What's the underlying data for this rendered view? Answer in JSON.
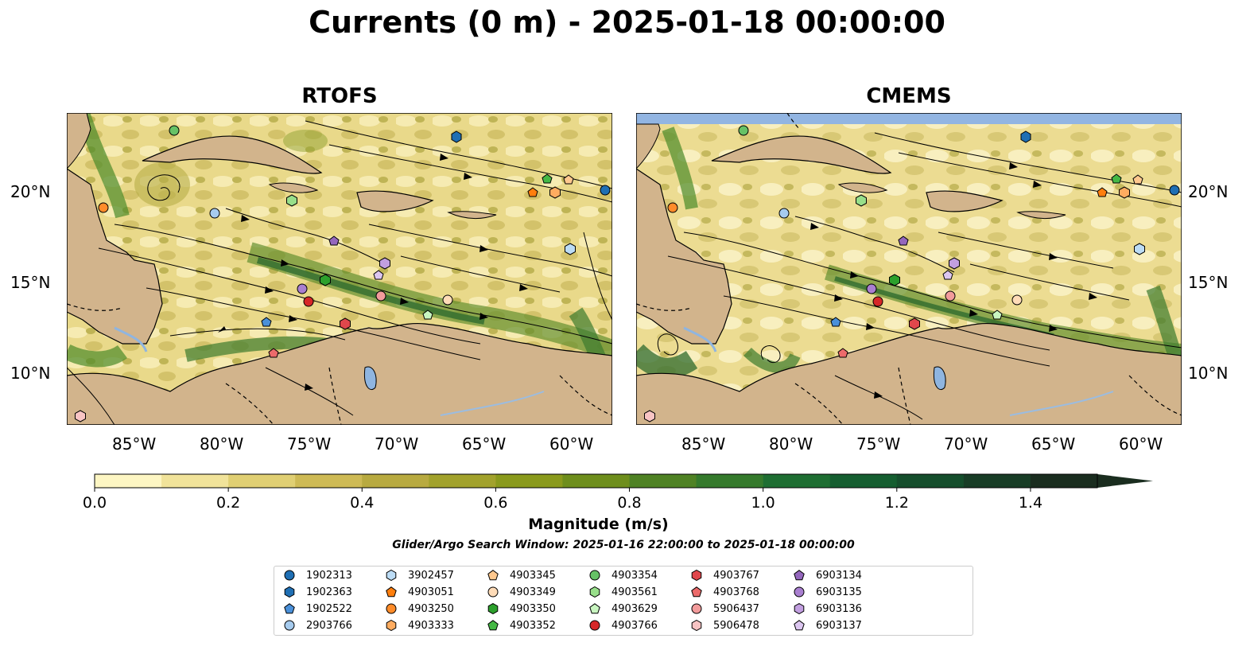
{
  "title": "Currents (0 m) - 2025-01-18 00:00:00",
  "panels": [
    {
      "title": "RTOFS"
    },
    {
      "title": "CMEMS"
    }
  ],
  "axes": {
    "lon_ticks": [
      "85°W",
      "80°W",
      "75°W",
      "70°W",
      "65°W",
      "60°W"
    ],
    "lat_ticks": [
      "20°N",
      "15°N",
      "10°N"
    ]
  },
  "colorbar": {
    "label": "Magnitude (m/s)",
    "ticks": [
      "0.0",
      "0.2",
      "0.4",
      "0.6",
      "0.8",
      "1.0",
      "1.2",
      "1.4"
    ],
    "colors": [
      "#fdf6c3",
      "#f1e39a",
      "#e0cf73",
      "#ceba55",
      "#b8aa40",
      "#a2a22c",
      "#8a9a1c",
      "#6e8e1c",
      "#4f8224",
      "#357a2c",
      "#1e6e32",
      "#155e30",
      "#154e2c",
      "#183d26",
      "#1a2d1f"
    ]
  },
  "search_window": "Glider/Argo Search Window: 2025-01-16 22:00:00 to 2025-01-18 00:00:00",
  "legend": [
    {
      "id": "1902313",
      "color": "#1f6fb4",
      "marker": "circle"
    },
    {
      "id": "1902363",
      "color": "#1f6fb4",
      "marker": "hexagon"
    },
    {
      "id": "1902522",
      "color": "#4a90d9",
      "marker": "pentagon"
    },
    {
      "id": "2903766",
      "color": "#a6cbee",
      "marker": "circle"
    },
    {
      "id": "3902457",
      "color": "#bcdcf5",
      "marker": "hexagon"
    },
    {
      "id": "4903051",
      "color": "#ff7f0e",
      "marker": "pentagon"
    },
    {
      "id": "4903250",
      "color": "#ff8c2a",
      "marker": "circle"
    },
    {
      "id": "4903333",
      "color": "#ffac60",
      "marker": "hexagon"
    },
    {
      "id": "4903345",
      "color": "#ffc88e",
      "marker": "pentagon"
    },
    {
      "id": "4903349",
      "color": "#ffdcb8",
      "marker": "circle"
    },
    {
      "id": "4903350",
      "color": "#2ca02c",
      "marker": "hexagon"
    },
    {
      "id": "4903352",
      "color": "#45b845",
      "marker": "pentagon"
    },
    {
      "id": "4903354",
      "color": "#66c266",
      "marker": "circle"
    },
    {
      "id": "4903561",
      "color": "#98df8a",
      "marker": "hexagon"
    },
    {
      "id": "4903629",
      "color": "#c8f5c0",
      "marker": "pentagon"
    },
    {
      "id": "4903766",
      "color": "#d62728",
      "marker": "circle"
    },
    {
      "id": "4903767",
      "color": "#e0474c",
      "marker": "hexagon"
    },
    {
      "id": "4903768",
      "color": "#ec6b6b",
      "marker": "pentagon"
    },
    {
      "id": "5906437",
      "color": "#f29b9b",
      "marker": "circle"
    },
    {
      "id": "5906478",
      "color": "#f8c4c4",
      "marker": "hexagon"
    },
    {
      "id": "6903134",
      "color": "#9467bd",
      "marker": "pentagon"
    },
    {
      "id": "6903135",
      "color": "#a97fd0",
      "marker": "circle"
    },
    {
      "id": "6903136",
      "color": "#c29fe0",
      "marker": "hexagon"
    },
    {
      "id": "6903137",
      "color": "#dcc6f0",
      "marker": "pentagon"
    }
  ]
}
